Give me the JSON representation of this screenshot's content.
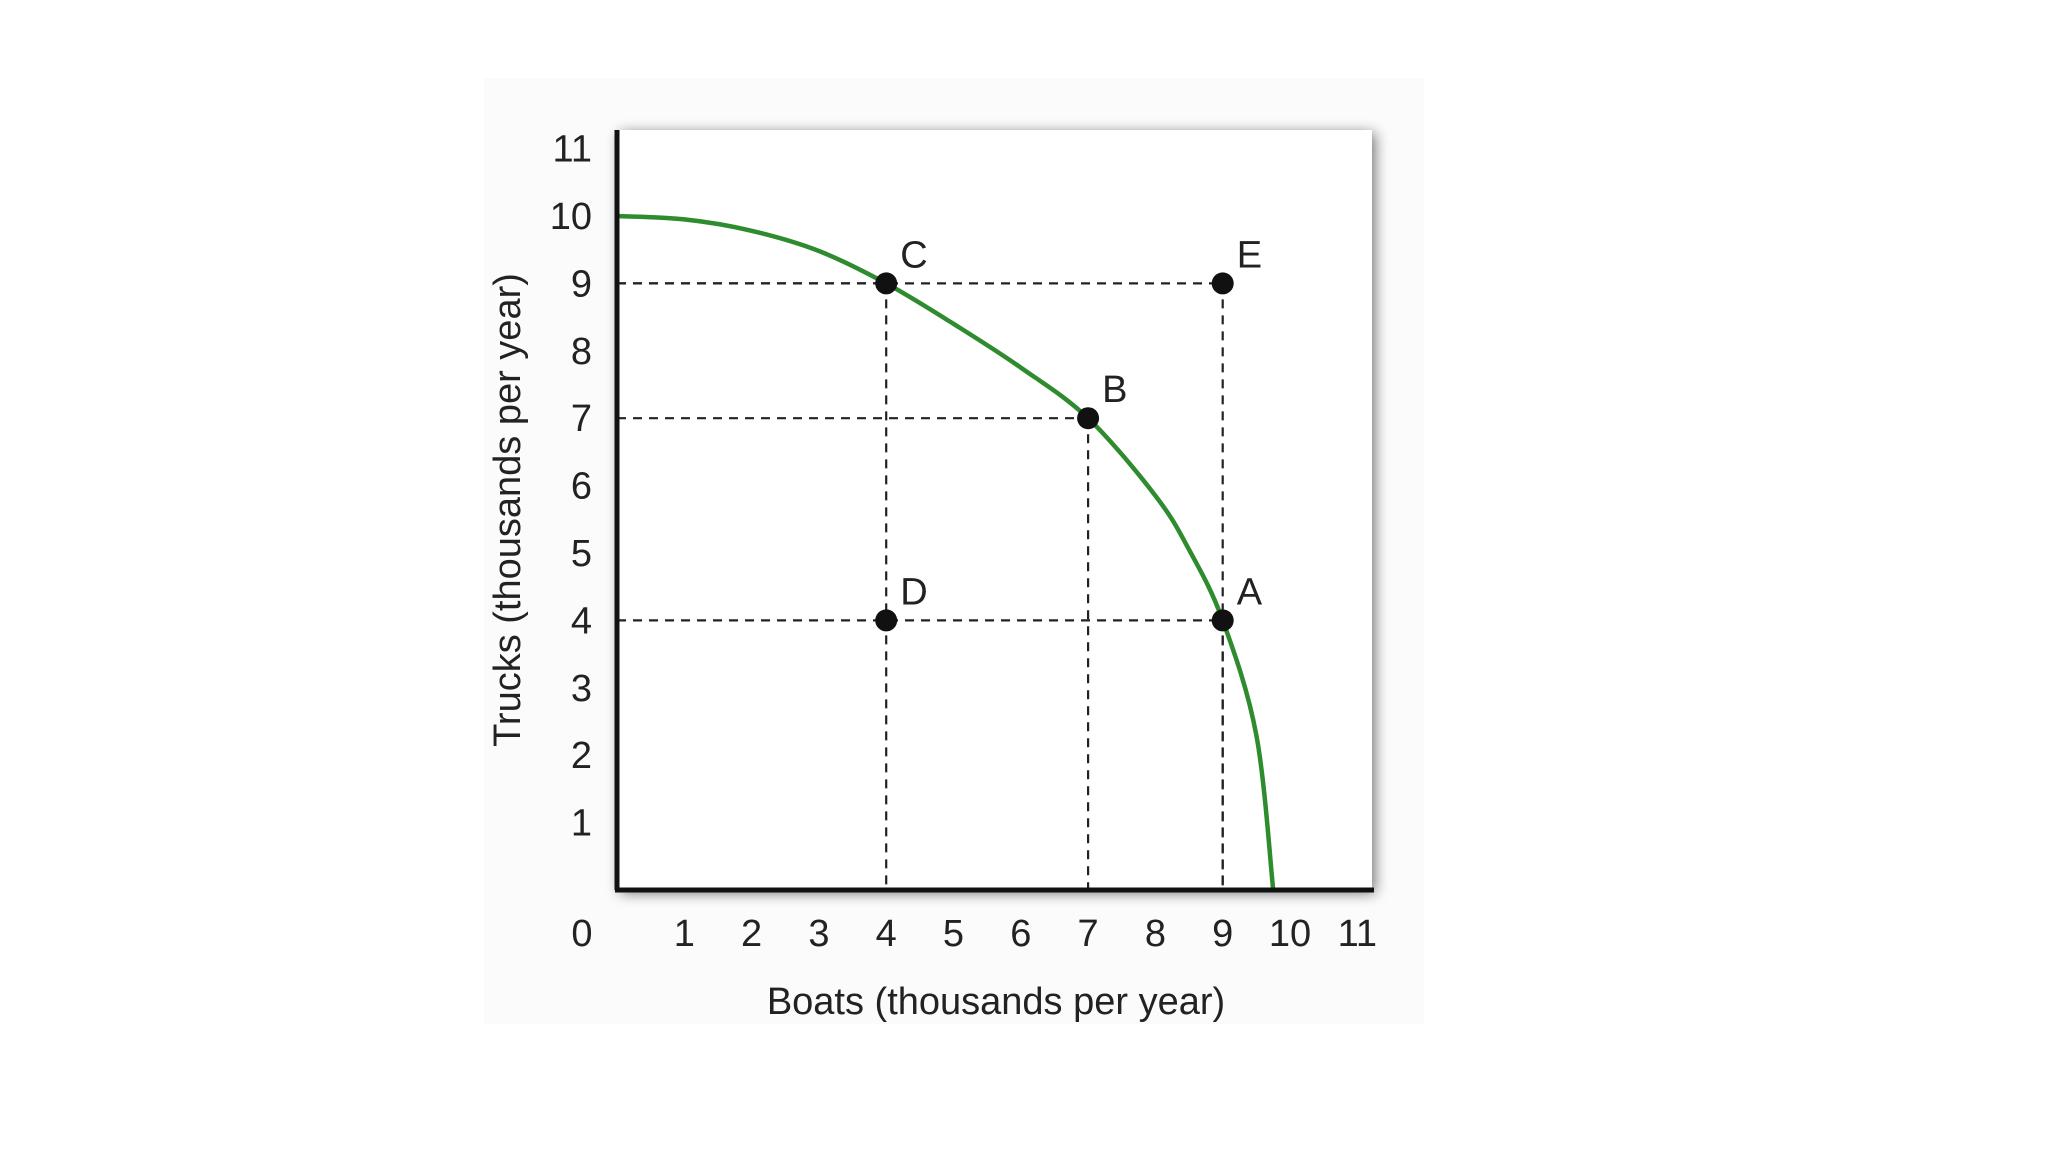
{
  "chart_data": {
    "type": "line",
    "xlabel": "Boats (thousands per year)",
    "ylabel": "Trucks (thousands per year)",
    "xlim": [
      0,
      11
    ],
    "ylim": [
      0,
      11
    ],
    "origin_label": "0",
    "x_ticks": [
      "1",
      "2",
      "3",
      "4",
      "5",
      "6",
      "7",
      "8",
      "9",
      "10",
      "11"
    ],
    "y_ticks": [
      "1",
      "2",
      "3",
      "4",
      "5",
      "6",
      "7",
      "8",
      "9",
      "10",
      "11"
    ],
    "curve": {
      "color": "#2e8b2e",
      "x": [
        0,
        1,
        2,
        3,
        4,
        5,
        6,
        7,
        8,
        8.5,
        9,
        9.5,
        9.75
      ],
      "y": [
        10,
        9.95,
        9.78,
        9.48,
        9.0,
        8.4,
        7.75,
        7.0,
        5.85,
        5.05,
        4.0,
        2.3,
        0
      ]
    },
    "points": [
      {
        "label": "A",
        "x": 9,
        "y": 4,
        "label_side": "upper-right"
      },
      {
        "label": "B",
        "x": 7,
        "y": 7,
        "label_side": "upper-right"
      },
      {
        "label": "C",
        "x": 4,
        "y": 9,
        "label_side": "upper-right"
      },
      {
        "label": "D",
        "x": 4,
        "y": 4,
        "label_side": "upper-right"
      },
      {
        "label": "E",
        "x": 9,
        "y": 9,
        "label_side": "upper-right"
      }
    ],
    "guide_lines": [
      {
        "x": 4,
        "y": 9
      },
      {
        "x": 7,
        "y": 7
      },
      {
        "x": 9,
        "y": 9
      },
      {
        "x": 9,
        "y": 4
      }
    ],
    "grid": false,
    "legend": "none"
  }
}
